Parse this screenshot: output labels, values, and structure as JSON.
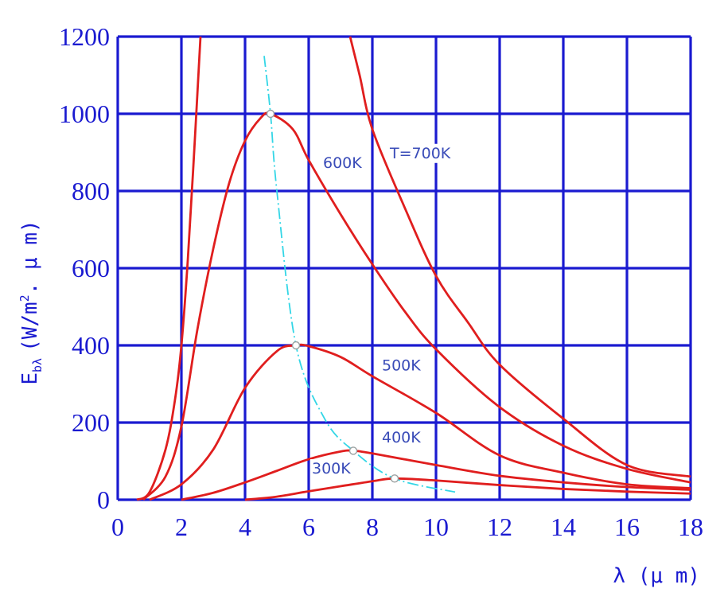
{
  "chart_data": {
    "type": "line",
    "title": "",
    "xlabel": "λ (μ m)",
    "ylabel": "E_bλ (W/m². μ m)",
    "ylabel_main": "E",
    "ylabel_sub": "bλ",
    "ylabel_units": "(W/m",
    "ylabel_sup": "2",
    "ylabel_units2": ". μ m)",
    "xlim": [
      0,
      18
    ],
    "ylim": [
      0,
      1200
    ],
    "x_ticks": [
      0,
      2,
      4,
      6,
      8,
      10,
      12,
      14,
      16,
      18
    ],
    "y_ticks": [
      0,
      200,
      400,
      600,
      800,
      1000,
      1200
    ],
    "grid": true,
    "colors": {
      "curve": "#e01e1e",
      "grid": "#1a1ad0",
      "axis_text": "#1a1ad0",
      "peak_locus": "#33d6e6",
      "label": "#3a4cb8"
    },
    "series": [
      {
        "name": "300K",
        "x": [
          4.0,
          5.0,
          6.0,
          7.0,
          8.0,
          8.7,
          10.0,
          12.0,
          14.0,
          16.0,
          18.0
        ],
        "y": [
          0,
          8,
          22,
          35,
          48,
          55,
          50,
          38,
          28,
          21,
          16
        ]
      },
      {
        "name": "400K",
        "x": [
          2.0,
          3.0,
          4.0,
          5.0,
          6.0,
          7.0,
          7.4,
          8.0,
          10.0,
          12.0,
          14.0,
          16.0,
          18.0
        ],
        "y": [
          0,
          18,
          45,
          75,
          105,
          125,
          127,
          120,
          90,
          62,
          45,
          33,
          26
        ]
      },
      {
        "name": "500K",
        "x": [
          1.0,
          2.0,
          3.0,
          4.0,
          5.0,
          5.6,
          6.0,
          7.0,
          8.0,
          10.0,
          12.0,
          14.0,
          16.0,
          18.0
        ],
        "y": [
          0,
          40,
          130,
          290,
          385,
          400,
          398,
          370,
          320,
          225,
          115,
          70,
          40,
          30
        ]
      },
      {
        "name": "600K",
        "x": [
          0.8,
          1.5,
          2.0,
          2.5,
          3.0,
          3.5,
          4.0,
          4.5,
          4.8,
          5.5,
          6.0,
          7.0,
          8.0,
          9.0,
          10.0,
          12.0,
          14.0,
          16.0,
          18.0
        ],
        "y": [
          0,
          60,
          190,
          440,
          650,
          820,
          930,
          990,
          1000,
          960,
          880,
          740,
          610,
          490,
          390,
          240,
          140,
          80,
          45
        ]
      },
      {
        "name": "T=700K",
        "x": [
          0.6,
          1.0,
          1.5,
          1.8,
          2.0,
          2.2,
          2.4,
          2.6
        ],
        "y": [
          0,
          20,
          130,
          260,
          400,
          620,
          900,
          1200
        ],
        "x2": [
          7.3,
          7.6,
          8.0,
          9.0,
          10.0,
          11.0,
          12.0,
          14.0,
          16.0,
          18.0
        ],
        "y2": [
          1200,
          1100,
          960,
          760,
          580,
          460,
          350,
          210,
          90,
          60
        ]
      }
    ],
    "peak_locus": {
      "x": [
        4.6,
        4.8,
        5.0,
        5.6,
        6.5,
        7.4,
        8.7,
        10.6
      ],
      "y": [
        1150,
        1000,
        800,
        400,
        210,
        127,
        55,
        20
      ]
    },
    "peak_points": [
      {
        "x": 4.8,
        "y": 1000
      },
      {
        "x": 5.6,
        "y": 400
      },
      {
        "x": 7.4,
        "y": 127
      },
      {
        "x": 8.7,
        "y": 55
      }
    ],
    "annotations": [
      {
        "text": "T=700K",
        "x": 8.55,
        "y": 885
      },
      {
        "text": "600K",
        "x": 6.45,
        "y": 860
      },
      {
        "text": "500K",
        "x": 8.3,
        "y": 335
      },
      {
        "text": "400K",
        "x": 8.3,
        "y": 148
      },
      {
        "text": "300K",
        "x": 6.1,
        "y": 68
      }
    ]
  }
}
